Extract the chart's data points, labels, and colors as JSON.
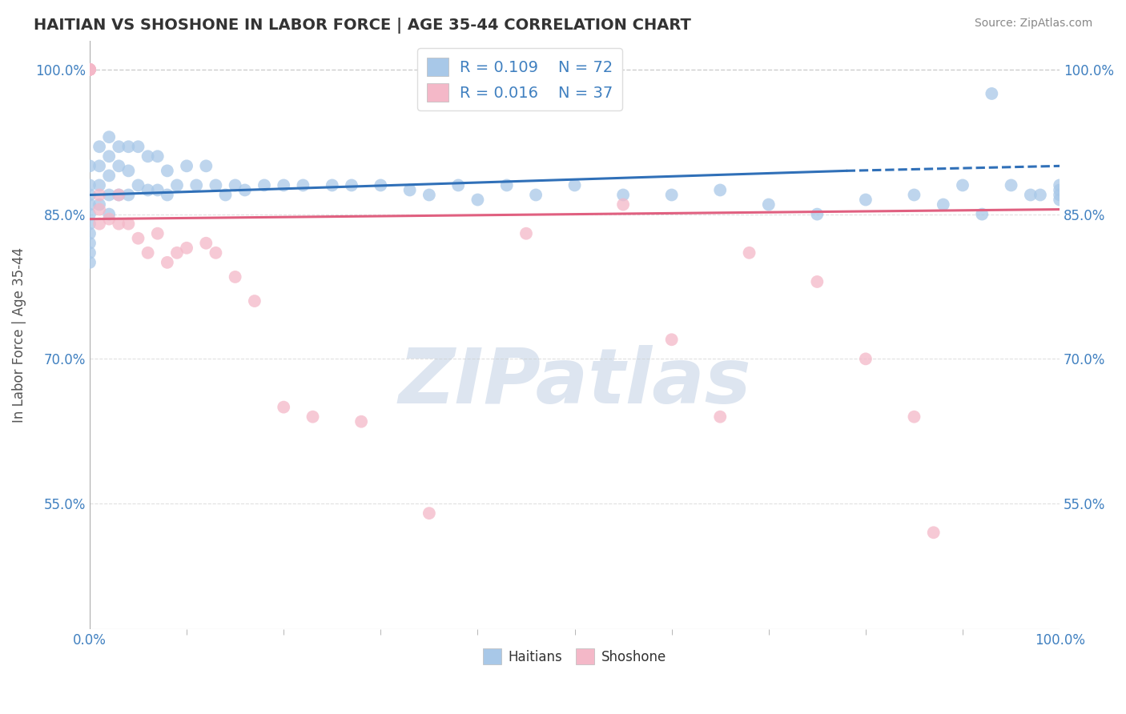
{
  "title": "HAITIAN VS SHOSHONE IN LABOR FORCE | AGE 35-44 CORRELATION CHART",
  "source_text": "Source: ZipAtlas.com",
  "ylabel": "In Labor Force | Age 35-44",
  "xmin": 0.0,
  "xmax": 1.0,
  "ymin": 0.42,
  "ymax": 1.03,
  "yticks": [
    0.55,
    0.7,
    0.85,
    1.0
  ],
  "ytick_labels": [
    "55.0%",
    "70.0%",
    "85.0%",
    "100.0%"
  ],
  "xtick_labels": [
    "0.0%",
    "100.0%"
  ],
  "xticks": [
    0.0,
    1.0
  ],
  "blue_R": "0.109",
  "blue_N": "72",
  "pink_R": "0.016",
  "pink_N": "37",
  "blue_color": "#a8c8e8",
  "pink_color": "#f4b8c8",
  "blue_line_color": "#3070b8",
  "pink_line_color": "#e06080",
  "legend_text_color": "#4080c0",
  "title_color": "#333333",
  "watermark_color": "#dde5f0",
  "grid_color": "#cccccc",
  "blue_scatter_x": [
    0.0,
    0.0,
    0.0,
    0.0,
    0.0,
    0.0,
    0.0,
    0.0,
    0.0,
    0.0,
    0.01,
    0.01,
    0.01,
    0.01,
    0.02,
    0.02,
    0.02,
    0.02,
    0.02,
    0.03,
    0.03,
    0.03,
    0.04,
    0.04,
    0.04,
    0.05,
    0.05,
    0.06,
    0.06,
    0.07,
    0.07,
    0.08,
    0.08,
    0.09,
    0.1,
    0.11,
    0.12,
    0.13,
    0.14,
    0.15,
    0.16,
    0.18,
    0.2,
    0.22,
    0.25,
    0.27,
    0.3,
    0.33,
    0.35,
    0.38,
    0.4,
    0.43,
    0.46,
    0.5,
    0.55,
    0.6,
    0.65,
    0.7,
    0.75,
    0.8,
    0.85,
    0.88,
    0.9,
    0.92,
    0.93,
    0.95,
    0.97,
    0.98,
    1.0,
    1.0,
    1.0,
    1.0
  ],
  "blue_scatter_y": [
    0.9,
    0.88,
    0.87,
    0.86,
    0.85,
    0.84,
    0.83,
    0.82,
    0.81,
    0.8,
    0.92,
    0.9,
    0.88,
    0.86,
    0.93,
    0.91,
    0.89,
    0.87,
    0.85,
    0.92,
    0.9,
    0.87,
    0.92,
    0.895,
    0.87,
    0.92,
    0.88,
    0.91,
    0.875,
    0.91,
    0.875,
    0.895,
    0.87,
    0.88,
    0.9,
    0.88,
    0.9,
    0.88,
    0.87,
    0.88,
    0.875,
    0.88,
    0.88,
    0.88,
    0.88,
    0.88,
    0.88,
    0.875,
    0.87,
    0.88,
    0.865,
    0.88,
    0.87,
    0.88,
    0.87,
    0.87,
    0.875,
    0.86,
    0.85,
    0.865,
    0.87,
    0.86,
    0.88,
    0.85,
    0.975,
    0.88,
    0.87,
    0.87,
    0.88,
    0.875,
    0.87,
    0.865
  ],
  "pink_scatter_x": [
    0.0,
    0.0,
    0.0,
    0.0,
    0.0,
    0.0,
    0.0,
    0.01,
    0.01,
    0.01,
    0.02,
    0.03,
    0.03,
    0.04,
    0.05,
    0.06,
    0.07,
    0.08,
    0.09,
    0.1,
    0.12,
    0.13,
    0.15,
    0.17,
    0.2,
    0.23,
    0.28,
    0.35,
    0.45,
    0.55,
    0.6,
    0.65,
    0.68,
    0.75,
    0.8,
    0.85,
    0.87
  ],
  "pink_scatter_y": [
    1.0,
    1.0,
    1.0,
    1.0,
    1.0,
    1.0,
    1.0,
    0.87,
    0.855,
    0.84,
    0.845,
    0.87,
    0.84,
    0.84,
    0.825,
    0.81,
    0.83,
    0.8,
    0.81,
    0.815,
    0.82,
    0.81,
    0.785,
    0.76,
    0.65,
    0.64,
    0.635,
    0.54,
    0.83,
    0.86,
    0.72,
    0.64,
    0.81,
    0.78,
    0.7,
    0.64,
    0.52
  ],
  "blue_trend_x": [
    0.0,
    0.78,
    1.0
  ],
  "blue_trend_y": [
    0.87,
    0.895,
    0.895
  ],
  "blue_trend_solid_end": 0.78,
  "pink_trend_x": [
    0.0,
    1.0
  ],
  "pink_trend_y": [
    0.845,
    0.855
  ],
  "dashed_line_y": 1.0,
  "dashed_line_color": "#cccccc"
}
